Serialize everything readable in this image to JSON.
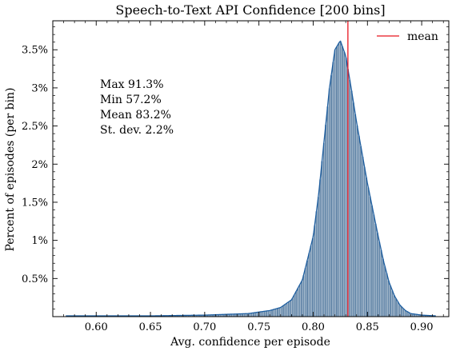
{
  "chart_data": {
    "type": "bar",
    "title": "Speech-to-Text API Confidence [200 bins]",
    "xlabel": "Avg. confidence per episode",
    "ylabel": "Percent of episodes (per bin)",
    "xlim": [
      0.56,
      0.925
    ],
    "ylim": [
      0,
      3.88
    ],
    "x_ticks": [
      0.6,
      0.65,
      0.7,
      0.75,
      0.8,
      0.85,
      0.9
    ],
    "x_tick_labels": [
      "0.60",
      "0.65",
      "0.70",
      "0.75",
      "0.80",
      "0.85",
      "0.90"
    ],
    "y_ticks": [
      0.5,
      1,
      1.5,
      2,
      2.5,
      3,
      3.5
    ],
    "y_tick_labels": [
      "0.5%",
      "1%",
      "1.5%",
      "2%",
      "2.5%",
      "3%",
      "3.5%"
    ],
    "bin_range": [
      0.572,
      0.913
    ],
    "bins": 200,
    "density_curve": {
      "x": [
        0.572,
        0.6,
        0.65,
        0.7,
        0.72,
        0.74,
        0.75,
        0.76,
        0.77,
        0.78,
        0.79,
        0.8,
        0.805,
        0.81,
        0.815,
        0.82,
        0.825,
        0.83,
        0.835,
        0.84,
        0.845,
        0.85,
        0.855,
        0.86,
        0.865,
        0.87,
        0.875,
        0.88,
        0.885,
        0.89,
        0.9,
        0.913
      ],
      "y": [
        0.01,
        0.01,
        0.01,
        0.02,
        0.03,
        0.04,
        0.06,
        0.08,
        0.12,
        0.22,
        0.48,
        1.05,
        1.6,
        2.3,
        3.0,
        3.5,
        3.62,
        3.42,
        3.0,
        2.55,
        2.15,
        1.75,
        1.4,
        1.05,
        0.72,
        0.45,
        0.27,
        0.15,
        0.08,
        0.04,
        0.02,
        0.01
      ]
    },
    "mean_line": {
      "x": 0.832,
      "color": "#e8141f"
    },
    "stats": [
      "Max 91.3%",
      "Min 57.2%",
      "Mean 83.2%",
      "St. dev. 2.2%"
    ],
    "legend": {
      "label": "mean",
      "position": "top-right"
    },
    "colors": {
      "bar_fill": "#5b7fa3",
      "curve": "#1f5fa0",
      "mean": "#e8141f"
    }
  }
}
